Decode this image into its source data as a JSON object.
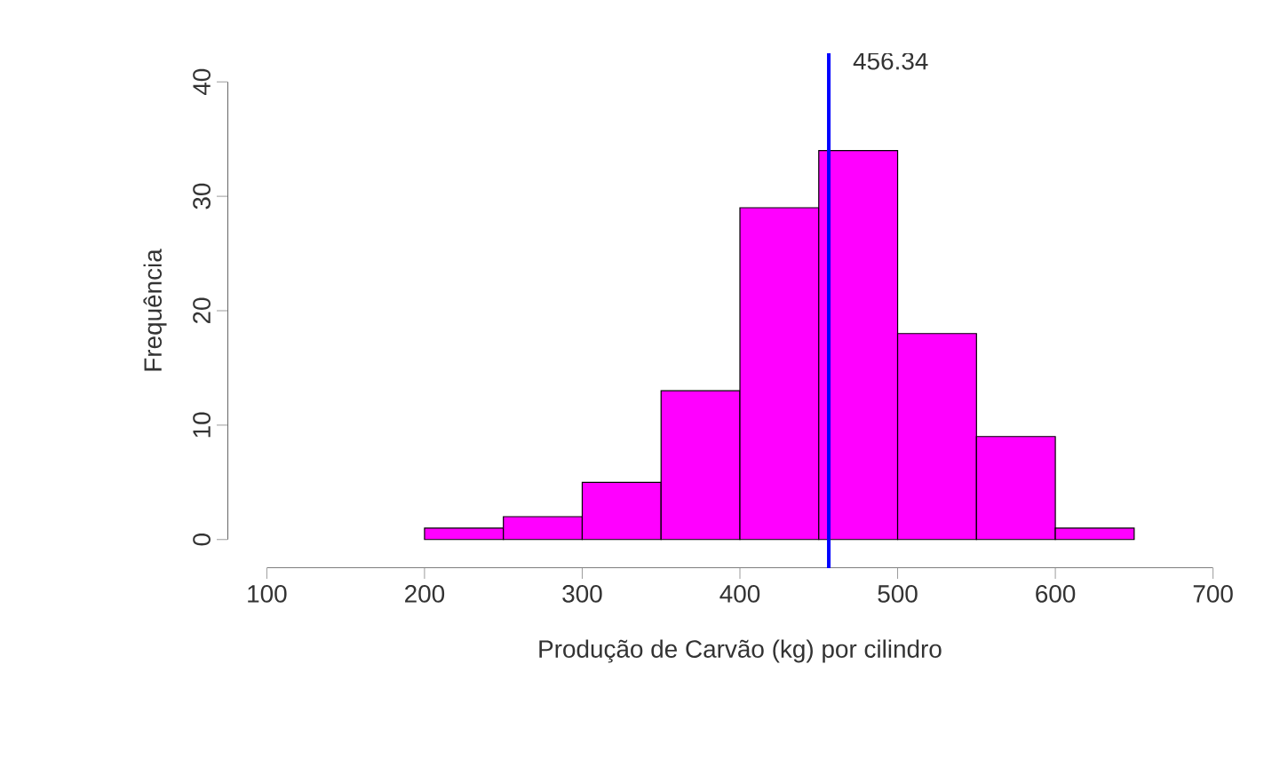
{
  "chart_data": {
    "type": "histogram",
    "xlabel": "Produção de Carvão (kg) por cilindro",
    "ylabel": "Frequência",
    "bins": [
      200,
      250,
      300,
      350,
      400,
      450,
      500,
      550,
      600,
      650
    ],
    "values": [
      1,
      2,
      5,
      13,
      29,
      34,
      18,
      9,
      1
    ],
    "color": "#ff00ff",
    "xlim": [
      100,
      700
    ],
    "xticks": [
      100,
      200,
      300,
      400,
      500,
      600,
      700
    ],
    "ylim": [
      0,
      40
    ],
    "yticks": [
      0,
      10,
      20,
      30,
      40
    ],
    "grid": false,
    "ref_lines": [
      {
        "axis": "x",
        "value": 456.34,
        "label": "456.34",
        "color": "#0000ff"
      }
    ]
  }
}
